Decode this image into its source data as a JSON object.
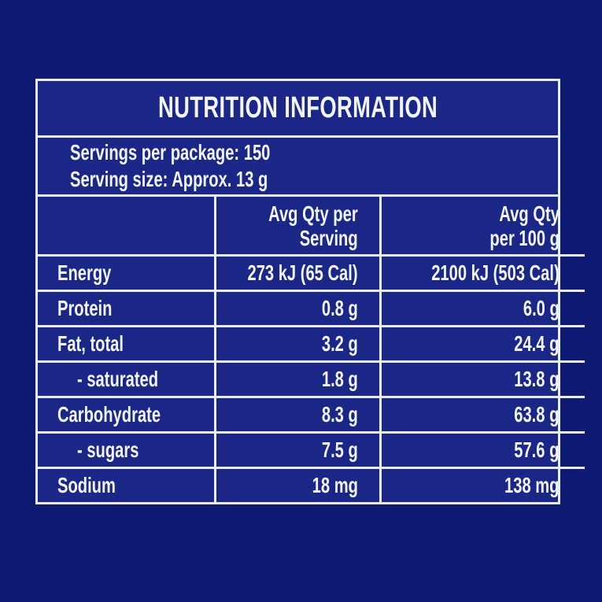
{
  "colors": {
    "page_bg": "#0e1a72",
    "panel_bg": "#1a2786",
    "border_color": "#e8eef9",
    "text_color": "#f2f5fd"
  },
  "label": {
    "title": "NUTRITION INFORMATION",
    "servings_per_package": "Servings per package: 150",
    "serving_size": "Serving size: Approx. 13 g",
    "columns": {
      "per_serving_line1": "Avg Qty per",
      "per_serving_line2": "Serving",
      "per_100g_line1": "Avg Qty",
      "per_100g_line2": "per 100 g"
    },
    "rows": [
      {
        "label": "Energy",
        "per_serving": "273 kJ (65 Cal)",
        "per_100g": "2100 kJ (503 Cal)"
      },
      {
        "label": "Protein",
        "per_serving": "0.8 g",
        "per_100g": "6.0 g"
      },
      {
        "label": "Fat, total",
        "per_serving": "3.2 g",
        "per_100g": "24.4 g"
      },
      {
        "label": "- saturated",
        "per_serving": "1.8 g",
        "per_100g": "13.8 g"
      },
      {
        "label": "Carbohydrate",
        "per_serving": "8.3 g",
        "per_100g": "63.8 g"
      },
      {
        "label": "- sugars",
        "per_serving": "7.5 g",
        "per_100g": "57.6 g"
      },
      {
        "label": "Sodium",
        "per_serving": "18 mg",
        "per_100g": "138 mg"
      }
    ]
  }
}
